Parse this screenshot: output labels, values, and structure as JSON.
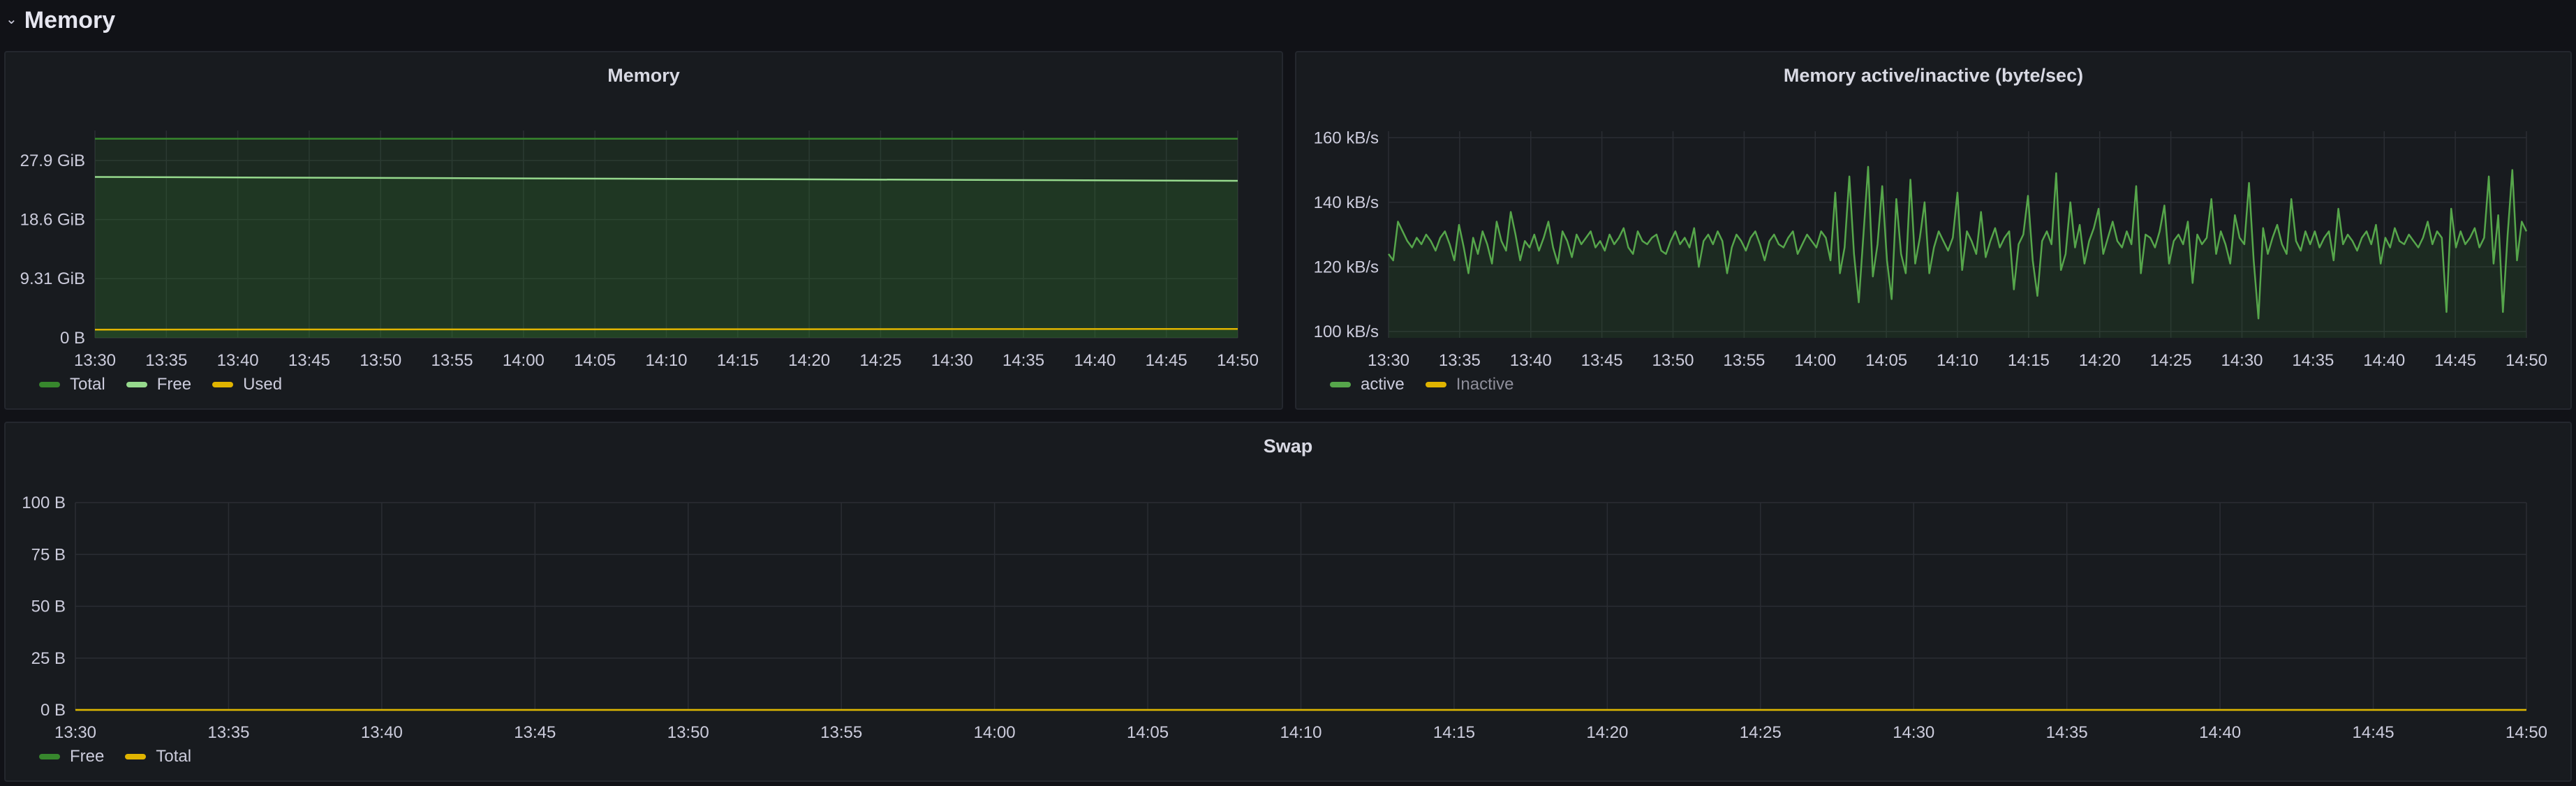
{
  "row": {
    "title": "Memory",
    "collapse_icon": "chevron-down-icon"
  },
  "colors": {
    "total": "#37872d",
    "free": "#96d98d",
    "used": "#e0b400",
    "active": "#56a64b",
    "inactive": "#e0b400",
    "grid": "#2a2d33",
    "fill_green": "rgba(55,135,45,0.15)"
  },
  "panels": {
    "memory": {
      "title": "Memory",
      "legend": [
        {
          "label": "Total",
          "color": "#37872d"
        },
        {
          "label": "Free",
          "color": "#96d98d"
        },
        {
          "label": "Used",
          "color": "#e0b400"
        }
      ]
    },
    "active": {
      "title": "Memory active/inactive (byte/sec)",
      "legend": [
        {
          "label": "active",
          "color": "#56a64b"
        },
        {
          "label": "Inactive",
          "color": "#e0b400",
          "dim": true
        }
      ]
    },
    "swap": {
      "title": "Swap",
      "legend": [
        {
          "label": "Free",
          "color": "#37872d"
        },
        {
          "label": "Total",
          "color": "#e0b400"
        }
      ]
    }
  },
  "chart_data": [
    {
      "type": "area",
      "title": "Memory",
      "x_ticks": [
        "13:30",
        "13:35",
        "13:40",
        "13:45",
        "13:50",
        "13:55",
        "14:00",
        "14:05",
        "14:10",
        "14:15",
        "14:20",
        "14:25",
        "14:30",
        "14:35",
        "14:40",
        "14:45",
        "14:50"
      ],
      "y_ticks": [
        {
          "label": "0 B",
          "value": 0
        },
        {
          "label": "9.31 GiB",
          "value": 9.31
        },
        {
          "label": "18.6 GiB",
          "value": 18.6
        },
        {
          "label": "27.9 GiB",
          "value": 27.9
        }
      ],
      "ylim": [
        0,
        32.6
      ],
      "grid": true,
      "legend_position": "bottom-left",
      "series": [
        {
          "name": "Total",
          "color": "#37872d",
          "values": [
            31.3,
            31.3
          ]
        },
        {
          "name": "Free",
          "color": "#96d98d",
          "values": [
            25.3,
            24.7
          ]
        },
        {
          "name": "Used",
          "color": "#e0b400",
          "values": [
            1.3,
            1.4
          ]
        }
      ]
    },
    {
      "type": "line",
      "title": "Memory active/inactive (byte/sec)",
      "x_ticks": [
        "13:30",
        "13:35",
        "13:40",
        "13:45",
        "13:50",
        "13:55",
        "14:00",
        "14:05",
        "14:10",
        "14:15",
        "14:20",
        "14:25",
        "14:30",
        "14:35",
        "14:40",
        "14:45",
        "14:50"
      ],
      "y_ticks": [
        {
          "label": "100 kB/s",
          "value": 100
        },
        {
          "label": "120 kB/s",
          "value": 120
        },
        {
          "label": "140 kB/s",
          "value": 140
        },
        {
          "label": "160 kB/s",
          "value": 160
        }
      ],
      "ylim": [
        98,
        162
      ],
      "grid": true,
      "legend_position": "bottom-left",
      "series": [
        {
          "name": "active",
          "color": "#56a64b",
          "values": [
            124,
            122,
            134,
            131,
            128,
            126,
            129,
            127,
            130,
            128,
            125,
            129,
            131,
            127,
            122,
            133,
            126,
            118,
            129,
            124,
            131,
            127,
            121,
            134,
            128,
            125,
            137,
            130,
            122,
            128,
            126,
            130,
            125,
            129,
            134,
            126,
            121,
            131,
            128,
            123,
            130,
            127,
            129,
            131,
            126,
            128,
            125,
            130,
            127,
            129,
            132,
            126,
            124,
            131,
            128,
            127,
            129,
            130,
            125,
            124,
            128,
            131,
            127,
            129,
            126,
            132,
            120,
            128,
            130,
            127,
            131,
            128,
            118,
            126,
            130,
            128,
            125,
            129,
            131,
            127,
            122,
            128,
            130,
            127,
            126,
            129,
            131,
            124,
            127,
            130,
            128,
            126,
            131,
            129,
            122,
            143,
            118,
            126,
            148,
            124,
            109,
            130,
            151,
            117,
            127,
            145,
            122,
            110,
            141,
            124,
            118,
            147,
            121,
            129,
            140,
            118,
            126,
            131,
            128,
            125,
            129,
            143,
            119,
            131,
            128,
            124,
            137,
            123,
            128,
            132,
            126,
            129,
            131,
            113,
            127,
            130,
            142,
            122,
            111,
            128,
            131,
            127,
            149,
            119,
            124,
            140,
            126,
            133,
            121,
            128,
            132,
            138,
            124,
            129,
            134,
            128,
            126,
            131,
            127,
            145,
            118,
            130,
            129,
            126,
            131,
            139,
            121,
            128,
            130,
            127,
            134,
            115,
            130,
            127,
            129,
            141,
            124,
            131,
            127,
            121,
            136,
            129,
            127,
            146,
            122,
            104,
            132,
            124,
            129,
            133,
            127,
            124,
            141,
            128,
            125,
            131,
            127,
            131,
            126,
            129,
            131,
            122,
            138,
            127,
            130,
            128,
            125,
            129,
            131,
            127,
            133,
            121,
            129,
            126,
            132,
            128,
            127,
            130,
            128,
            126,
            129,
            134,
            127,
            131,
            129,
            106,
            138,
            126,
            131,
            127,
            129,
            132,
            126,
            129,
            148,
            121,
            136,
            106,
            130,
            150,
            122,
            134,
            131
          ]
        },
        {
          "name": "Inactive",
          "color": "#e0b400",
          "values": []
        }
      ]
    },
    {
      "type": "line",
      "title": "Swap",
      "x_ticks": [
        "13:30",
        "13:35",
        "13:40",
        "13:45",
        "13:50",
        "13:55",
        "14:00",
        "14:05",
        "14:10",
        "14:15",
        "14:20",
        "14:25",
        "14:30",
        "14:35",
        "14:40",
        "14:45",
        "14:50"
      ],
      "y_ticks": [
        {
          "label": "0 B",
          "value": 0
        },
        {
          "label": "25 B",
          "value": 25
        },
        {
          "label": "50 B",
          "value": 50
        },
        {
          "label": "75 B",
          "value": 75
        },
        {
          "label": "100 B",
          "value": 100
        }
      ],
      "ylim": [
        0,
        100
      ],
      "grid": true,
      "legend_position": "bottom-left",
      "series": [
        {
          "name": "Free",
          "color": "#37872d",
          "values": [
            0,
            0
          ]
        },
        {
          "name": "Total",
          "color": "#e0b400",
          "values": [
            0,
            0
          ]
        }
      ]
    }
  ]
}
